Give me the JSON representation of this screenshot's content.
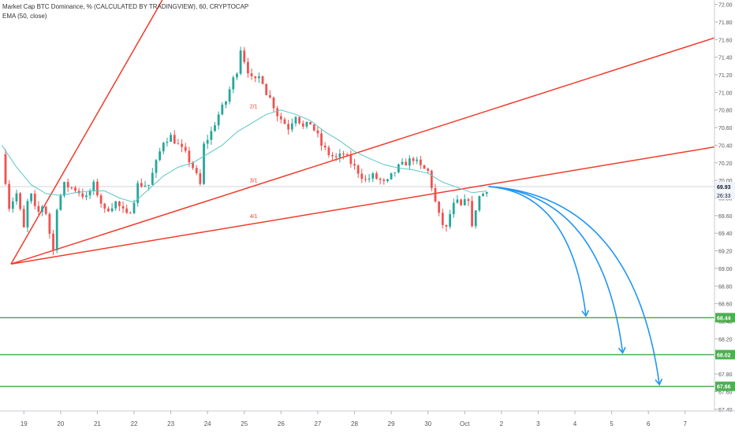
{
  "legend": {
    "title": "Market Cap BTC Dominance, % (CALCULATED BY TRADINGVIEW), 60, CRYPTOCAP",
    "ema": "EMA (50, close)"
  },
  "colors": {
    "bull": "#26a69a",
    "bear": "#ef5350",
    "ema": "#5cc6c6",
    "fan": "#f23a2a",
    "support": "#4caf50",
    "arrow": "#2196f3",
    "grid": "#e0e3eb",
    "axis_text": "#555555"
  },
  "chart_data": {
    "type": "candlestick",
    "ylim": [
      67.38,
      72.05
    ],
    "y_ticks": [
      "72.00",
      "71.80",
      "71.60",
      "71.40",
      "71.20",
      "71.00",
      "70.80",
      "70.60",
      "70.40",
      "70.20",
      "70.00",
      "69.80",
      "69.60",
      "69.40",
      "69.20",
      "69.00",
      "68.80",
      "68.60",
      "68.40",
      "68.20",
      "68.00",
      "67.80",
      "67.60",
      "67.40"
    ],
    "x_ticks": [
      "19",
      "20",
      "21",
      "22",
      "23",
      "24",
      "25",
      "26",
      "27",
      "28",
      "29",
      "30",
      "Oct",
      "2",
      "3",
      "4",
      "5",
      "6",
      "7"
    ],
    "x_tick_days": [
      19,
      20,
      21,
      22,
      23,
      24,
      25,
      26,
      27,
      28,
      29,
      30,
      31,
      32,
      33,
      34,
      35,
      36,
      37
    ],
    "xlim": [
      18.35,
      37.8
    ],
    "last_price": {
      "value": 69.93,
      "label": "69.93"
    },
    "countdown": "26:33",
    "support_levels": [
      {
        "value": 68.44,
        "label": "68.44"
      },
      {
        "value": 68.02,
        "label": "68.02"
      },
      {
        "value": 67.66,
        "label": "67.66"
      }
    ],
    "close_path": [
      [
        18.4,
        70.3
      ],
      [
        18.6,
        69.7
      ],
      [
        18.8,
        69.85
      ],
      [
        19.0,
        69.45
      ],
      [
        19.15,
        69.9
      ],
      [
        19.35,
        69.6
      ],
      [
        19.55,
        69.75
      ],
      [
        19.7,
        69.4
      ],
      [
        19.8,
        69.2
      ],
      [
        19.9,
        69.7
      ],
      [
        20.1,
        69.95
      ],
      [
        20.4,
        69.9
      ],
      [
        20.7,
        69.8
      ],
      [
        20.9,
        69.95
      ],
      [
        21.0,
        69.85
      ],
      [
        21.2,
        69.65
      ],
      [
        21.5,
        69.75
      ],
      [
        21.8,
        69.6
      ],
      [
        21.95,
        69.7
      ],
      [
        22.1,
        69.95
      ],
      [
        22.4,
        69.95
      ],
      [
        22.6,
        70.2
      ],
      [
        22.8,
        70.45
      ],
      [
        23.0,
        70.5
      ],
      [
        23.2,
        70.4
      ],
      [
        23.4,
        70.3
      ],
      [
        23.6,
        70.15
      ],
      [
        23.8,
        69.95
      ],
      [
        23.9,
        70.4
      ],
      [
        24.1,
        70.55
      ],
      [
        24.3,
        70.75
      ],
      [
        24.5,
        70.9
      ],
      [
        24.65,
        71.1
      ],
      [
        24.8,
        71.25
      ],
      [
        24.9,
        71.5
      ],
      [
        25.05,
        71.3
      ],
      [
        25.25,
        71.1
      ],
      [
        25.45,
        71.2
      ],
      [
        25.6,
        71.0
      ],
      [
        25.75,
        70.9
      ],
      [
        25.9,
        70.75
      ],
      [
        26.0,
        70.7
      ],
      [
        26.2,
        70.6
      ],
      [
        26.4,
        70.75
      ],
      [
        26.6,
        70.6
      ],
      [
        26.8,
        70.65
      ],
      [
        27.0,
        70.5
      ],
      [
        27.1,
        70.4
      ],
      [
        27.3,
        70.3
      ],
      [
        27.5,
        70.25
      ],
      [
        27.7,
        70.3
      ],
      [
        27.9,
        70.2
      ],
      [
        28.1,
        70.1
      ],
      [
        28.3,
        70.0
      ],
      [
        28.5,
        70.05
      ],
      [
        28.7,
        70.0
      ],
      [
        28.85,
        69.95
      ],
      [
        29.0,
        70.05
      ],
      [
        29.2,
        70.15
      ],
      [
        29.4,
        70.2
      ],
      [
        29.6,
        70.25
      ],
      [
        29.8,
        70.15
      ],
      [
        30.0,
        70.1
      ],
      [
        30.15,
        69.85
      ],
      [
        30.25,
        69.65
      ],
      [
        30.4,
        69.5
      ],
      [
        30.5,
        69.45
      ],
      [
        30.65,
        69.7
      ],
      [
        30.8,
        69.75
      ],
      [
        30.9,
        69.7
      ],
      [
        31.1,
        69.8
      ],
      [
        31.2,
        69.45
      ],
      [
        31.35,
        69.8
      ],
      [
        31.5,
        69.85
      ],
      [
        31.65,
        69.93
      ]
    ],
    "ema_path": [
      [
        18.4,
        70.4
      ],
      [
        18.8,
        70.15
      ],
      [
        19.2,
        69.95
      ],
      [
        19.6,
        69.85
      ],
      [
        20.0,
        69.83
      ],
      [
        20.4,
        69.86
      ],
      [
        20.8,
        69.88
      ],
      [
        21.2,
        69.88
      ],
      [
        21.6,
        69.8
      ],
      [
        22.0,
        69.75
      ],
      [
        22.4,
        69.9
      ],
      [
        22.8,
        70.05
      ],
      [
        23.2,
        70.15
      ],
      [
        23.6,
        70.2
      ],
      [
        24.0,
        70.3
      ],
      [
        24.4,
        70.4
      ],
      [
        24.8,
        70.55
      ],
      [
        25.2,
        70.65
      ],
      [
        25.6,
        70.75
      ],
      [
        26.0,
        70.8
      ],
      [
        26.4,
        70.75
      ],
      [
        26.8,
        70.68
      ],
      [
        27.2,
        70.55
      ],
      [
        27.6,
        70.45
      ],
      [
        28.0,
        70.33
      ],
      [
        28.4,
        70.25
      ],
      [
        28.8,
        70.18
      ],
      [
        29.2,
        70.14
      ],
      [
        29.6,
        70.12
      ],
      [
        30.0,
        70.08
      ],
      [
        30.4,
        69.98
      ],
      [
        30.8,
        69.92
      ],
      [
        31.2,
        69.86
      ],
      [
        31.6,
        69.88
      ]
    ],
    "fan_lines": [
      {
        "label": "2/1",
        "from": [
          18.65,
          69.05
        ],
        "to": [
          22.77,
          72.05
        ]
      },
      {
        "label": "3/1",
        "from": [
          18.65,
          69.05
        ],
        "to": [
          37.8,
          71.62
        ]
      },
      {
        "label": "4/1",
        "from": [
          18.65,
          69.05
        ],
        "to": [
          37.8,
          70.38
        ]
      }
    ],
    "fan_labels": [
      {
        "text": "2/1",
        "x": 25.15,
        "y": 70.82
      },
      {
        "text": "3/1",
        "x": 25.15,
        "y": 69.98
      },
      {
        "text": "4/1",
        "x": 25.15,
        "y": 69.57
      }
    ],
    "projections": [
      {
        "from": [
          31.65,
          69.93
        ],
        "to": [
          34.3,
          68.46
        ]
      },
      {
        "from": [
          31.65,
          69.93
        ],
        "to": [
          35.3,
          68.04
        ]
      },
      {
        "from": [
          31.65,
          69.93
        ],
        "to": [
          36.3,
          67.68
        ]
      }
    ]
  }
}
